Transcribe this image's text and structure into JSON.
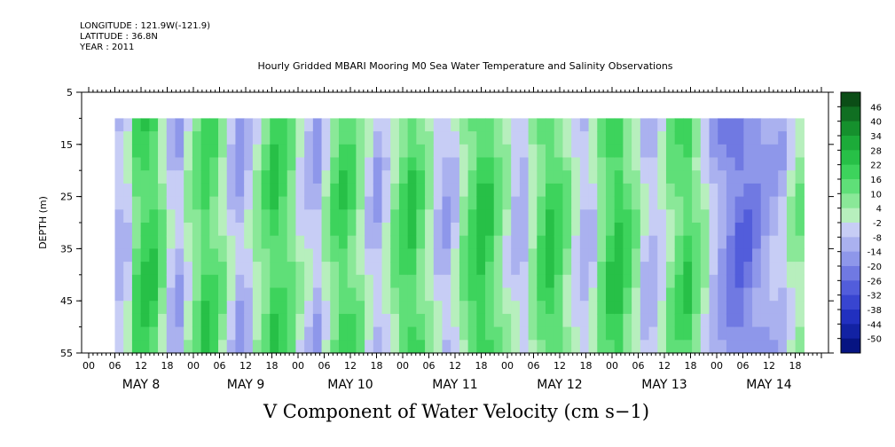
{
  "header": {
    "longitude": "LONGITUDE : 121.9W(-121.9)",
    "latitude": "LATITUDE : 36.8N",
    "year": "YEAR : 2011",
    "title": "Hourly Gridded MBARI Mooring M0 Sea Water Temperature and Salinity Observations"
  },
  "chart_data": {
    "type": "heatmap",
    "title": "Hourly Gridded MBARI Mooring M0 Sea Water Temperature and Salinity Observations",
    "xlabel": "V Component of Water Velocity (cm s−1)",
    "ylabel": "DEPTH (m)",
    "ylim": [
      55,
      5
    ],
    "y_ticks": [
      5,
      15,
      25,
      35,
      45,
      55
    ],
    "y_tick_labels": [
      "5",
      "15",
      "25",
      "35",
      "45",
      "55"
    ],
    "x_hour_labels": [
      "00",
      "06",
      "12",
      "18",
      "00",
      "06",
      "12",
      "18",
      "00",
      "06",
      "12",
      "18",
      "00",
      "06",
      "12",
      "18",
      "00",
      "06",
      "12",
      "18",
      "00",
      "06",
      "12",
      "18",
      "00",
      "06",
      "12",
      "18"
    ],
    "x_day_labels": [
      "MAY  8",
      "MAY  9",
      "MAY 10",
      "MAY 11",
      "MAY 12",
      "MAY 13",
      "MAY 14"
    ],
    "data_depth_range": [
      10,
      55
    ],
    "data_time_start_hour": 6,
    "colorbar": {
      "levels": [
        46,
        40,
        34,
        28,
        22,
        16,
        10,
        4,
        -2,
        -8,
        -14,
        -20,
        -26,
        -32,
        -38,
        -44,
        -50
      ],
      "labels": [
        "46",
        "40",
        "34",
        "28",
        "22",
        "16",
        "10",
        "4",
        "-2",
        "-8",
        "-14",
        "-20",
        "-26",
        "-32",
        "-38",
        "-44",
        "-50"
      ],
      "colors": [
        "#0b4d16",
        "#106f22",
        "#15902d",
        "#1cab39",
        "#27c047",
        "#3dd35c",
        "#5fdf78",
        "#8ae898",
        "#b7efbd",
        "#c7cdf5",
        "#aab1ef",
        "#8e97ea",
        "#7079e2",
        "#525ddb",
        "#3845d0",
        "#2130bf",
        "#1222a3",
        "#061482"
      ]
    },
    "cell_columns_day": [
      [
        -8,
        -4,
        14,
        20,
        18,
        8,
        -6,
        -10,
        2,
        10,
        18,
        14,
        6,
        -4,
        -12,
        -6,
        4,
        12,
        20,
        16,
        10,
        0,
        -6,
        -10,
        2,
        12,
        18,
        14,
        6,
        -4,
        -10,
        -2,
        8,
        16,
        20,
        12,
        4,
        -6,
        -10,
        -4,
        8,
        16,
        22,
        18,
        10,
        2,
        -6,
        -8,
        4,
        14,
        20,
        16,
        8,
        -2,
        -8,
        -4,
        10,
        18,
        22,
        14,
        6,
        -6,
        -8,
        -2,
        8,
        14,
        18,
        10,
        2,
        -8,
        -14,
        -20,
        -24,
        -22,
        -18,
        -14,
        -10,
        -8,
        2,
        6
      ]
    ],
    "cell_depth_profile_note": "values vary with depth"
  }
}
